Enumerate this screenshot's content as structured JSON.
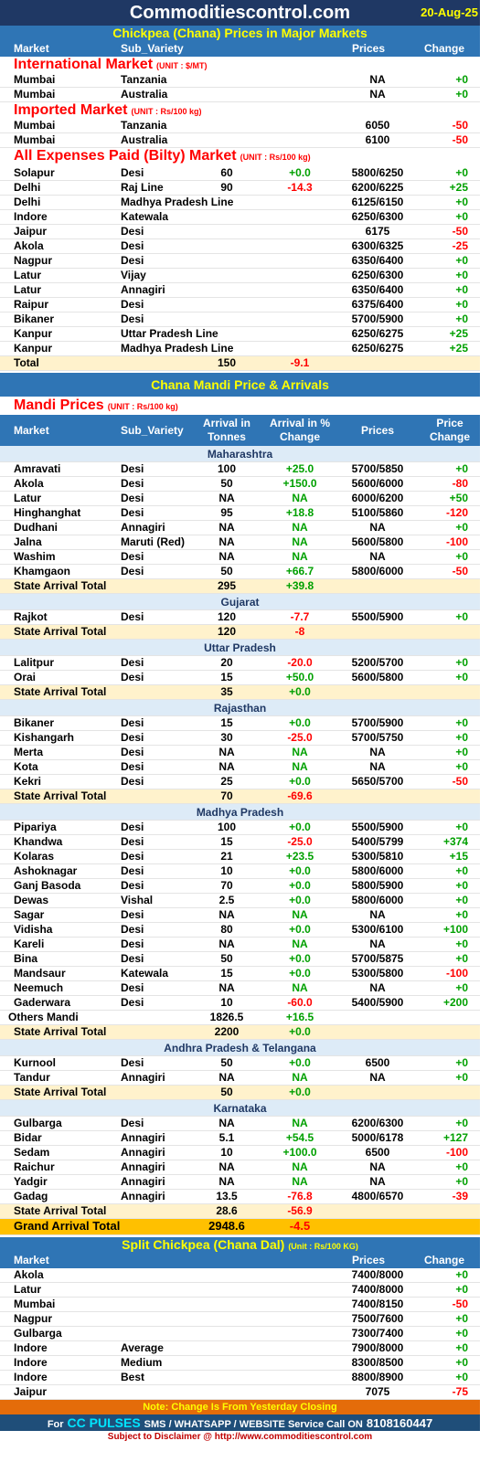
{
  "header": {
    "site": "Commoditiescontrol.com",
    "date": "20-Aug-25"
  },
  "major_markets": {
    "title": "Chickpea (Chana) Prices in Major Markets",
    "columns": [
      "Market",
      "Sub_Variety",
      "Prices",
      "Change"
    ],
    "groups": [
      {
        "name": "International Market",
        "unit": "(UNIT : $/MT)",
        "rows": [
          {
            "market": "Mumbai",
            "sub_variety": "Tanzania",
            "prices": "NA",
            "change": "+0"
          },
          {
            "market": "Mumbai",
            "sub_variety": "Australia",
            "prices": "NA",
            "change": "+0"
          }
        ]
      },
      {
        "name": "Imported Market",
        "unit": "(UNIT : Rs/100 kg)",
        "rows": [
          {
            "market": "Mumbai",
            "sub_variety": "Tanzania",
            "prices": "6050",
            "change": "-50"
          },
          {
            "market": "Mumbai",
            "sub_variety": "Australia",
            "prices": "6100",
            "change": "-50"
          }
        ]
      },
      {
        "name": "All Expenses Paid (Bilty) Market",
        "unit": "(UNIT : Rs/100 kg)",
        "rows": [
          {
            "market": "Solapur",
            "sub_variety": "Desi",
            "arrival": "60",
            "arrival_change": "+0.0",
            "prices": "5800/6250",
            "change": "+0"
          },
          {
            "market": "Delhi",
            "sub_variety": "Raj Line",
            "arrival": "90",
            "arrival_change": "-14.3",
            "prices": "6200/6225",
            "change": "+25"
          },
          {
            "market": "Delhi",
            "sub_variety": "Madhya Pradesh Line",
            "prices": "6125/6150",
            "change": "+0"
          },
          {
            "market": "Indore",
            "sub_variety": "Katewala",
            "prices": "6250/6300",
            "change": "+0"
          },
          {
            "market": "Jaipur",
            "sub_variety": "Desi",
            "prices": "6175",
            "change": "-50"
          },
          {
            "market": "Akola",
            "sub_variety": "Desi",
            "prices": "6300/6325",
            "change": "-25"
          },
          {
            "market": "Nagpur",
            "sub_variety": "Desi",
            "prices": "6350/6400",
            "change": "+0"
          },
          {
            "market": "Latur",
            "sub_variety": "Vijay",
            "prices": "6250/6300",
            "change": "+0"
          },
          {
            "market": "Latur",
            "sub_variety": "Annagiri",
            "prices": "6350/6400",
            "change": "+0"
          },
          {
            "market": "Raipur",
            "sub_variety": "Desi",
            "prices": "6375/6400",
            "change": "+0"
          },
          {
            "market": "Bikaner",
            "sub_variety": "Desi",
            "prices": "5700/5900",
            "change": "+0"
          },
          {
            "market": "Kanpur",
            "sub_variety": "Uttar Pradesh Line",
            "prices": "6250/6275",
            "change": "+25"
          },
          {
            "market": "Kanpur",
            "sub_variety": "Madhya Pradesh Line",
            "prices": "6250/6275",
            "change": "+25"
          }
        ],
        "total": {
          "label": "Total",
          "arrival": "150",
          "arrival_change": "-9.1"
        }
      }
    ]
  },
  "mandi": {
    "title": "Chana Mandi Price & Arrivals",
    "heading": "Mandi Prices",
    "unit": "(UNIT : Rs/100 kg)",
    "columns": [
      "Market",
      "Sub_Variety",
      "Arrival in Tonnes",
      "Arrival  in % Change",
      "Prices",
      "Price Change"
    ],
    "regions": [
      {
        "name": "Maharashtra",
        "rows": [
          {
            "market": "Amravati",
            "sub_variety": "Desi",
            "arrival": "100",
            "arrival_change": "+25.0",
            "prices": "5700/5850",
            "change": "+0"
          },
          {
            "market": "Akola",
            "sub_variety": "Desi",
            "arrival": "50",
            "arrival_change": "+150.0",
            "prices": "5600/6000",
            "change": "-80"
          },
          {
            "market": "Latur",
            "sub_variety": "Desi",
            "arrival": "NA",
            "arrival_change": "NA",
            "prices": "6000/6200",
            "change": "+50"
          },
          {
            "market": "Hinghanghat",
            "sub_variety": "Desi",
            "arrival": "95",
            "arrival_change": "+18.8",
            "prices": "5100/5860",
            "change": "-120"
          },
          {
            "market": "Dudhani",
            "sub_variety": "Annagiri",
            "arrival": "NA",
            "arrival_change": "NA",
            "prices": "NA",
            "change": "+0"
          },
          {
            "market": "Jalna",
            "sub_variety": "Maruti (Red)",
            "arrival": "NA",
            "arrival_change": "NA",
            "prices": "5600/5800",
            "change": "-100"
          },
          {
            "market": "Washim",
            "sub_variety": "Desi",
            "arrival": "NA",
            "arrival_change": "NA",
            "prices": "NA",
            "change": "+0"
          },
          {
            "market": "Khamgaon",
            "sub_variety": "Desi",
            "arrival": "50",
            "arrival_change": "+66.7",
            "prices": "5800/6000",
            "change": "-50"
          }
        ],
        "total": {
          "label": "State Arrival Total",
          "arrival": "295",
          "arrival_change": "+39.8"
        }
      },
      {
        "name": "Gujarat",
        "rows": [
          {
            "market": "Rajkot",
            "sub_variety": "Desi",
            "arrival": "120",
            "arrival_change": "-7.7",
            "prices": "5500/5900",
            "change": "+0"
          }
        ],
        "total": {
          "label": "State Arrival Total",
          "arrival": "120",
          "arrival_change": "-8"
        }
      },
      {
        "name": "Uttar Pradesh",
        "rows": [
          {
            "market": "Lalitpur",
            "sub_variety": "Desi",
            "arrival": "20",
            "arrival_change": "-20.0",
            "prices": "5200/5700",
            "change": "+0"
          },
          {
            "market": "Orai",
            "sub_variety": "Desi",
            "arrival": "15",
            "arrival_change": "+50.0",
            "prices": "5600/5800",
            "change": "+0"
          }
        ],
        "total": {
          "label": "State Arrival Total",
          "arrival": "35",
          "arrival_change": "+0.0"
        }
      },
      {
        "name": "Rajasthan",
        "rows": [
          {
            "market": "Bikaner",
            "sub_variety": "Desi",
            "arrival": "15",
            "arrival_change": "+0.0",
            "prices": "5700/5900",
            "change": "+0"
          },
          {
            "market": "Kishangarh",
            "sub_variety": "Desi",
            "arrival": "30",
            "arrival_change": "-25.0",
            "prices": "5700/5750",
            "change": "+0"
          },
          {
            "market": "Merta",
            "sub_variety": "Desi",
            "arrival": "NA",
            "arrival_change": "NA",
            "prices": "NA",
            "change": "+0"
          },
          {
            "market": "Kota",
            "sub_variety": "Desi",
            "arrival": "NA",
            "arrival_change": "NA",
            "prices": "NA",
            "change": "+0"
          },
          {
            "market": "Kekri",
            "sub_variety": "Desi",
            "arrival": "25",
            "arrival_change": "+0.0",
            "prices": "5650/5700",
            "change": "-50"
          }
        ],
        "total": {
          "label": "State Arrival Total",
          "arrival": "70",
          "arrival_change": "-69.6"
        }
      },
      {
        "name": "Madhya Pradesh",
        "rows": [
          {
            "market": "Pipariya",
            "sub_variety": "Desi",
            "arrival": "100",
            "arrival_change": "+0.0",
            "prices": "5500/5900",
            "change": "+0"
          },
          {
            "market": "Khandwa",
            "sub_variety": "Desi",
            "arrival": "15",
            "arrival_change": "-25.0",
            "prices": "5400/5799",
            "change": "+374"
          },
          {
            "market": "Kolaras",
            "sub_variety": "Desi",
            "arrival": "21",
            "arrival_change": "+23.5",
            "prices": "5300/5810",
            "change": "+15"
          },
          {
            "market": "Ashoknagar",
            "sub_variety": "Desi",
            "arrival": "10",
            "arrival_change": "+0.0",
            "prices": "5800/6000",
            "change": "+0"
          },
          {
            "market": "Ganj Basoda",
            "sub_variety": "Desi",
            "arrival": "70",
            "arrival_change": "+0.0",
            "prices": "5800/5900",
            "change": "+0"
          },
          {
            "market": "Dewas",
            "sub_variety": "Vishal",
            "arrival": "2.5",
            "arrival_change": "+0.0",
            "prices": "5800/6000",
            "change": "+0"
          },
          {
            "market": "Sagar",
            "sub_variety": "Desi",
            "arrival": "NA",
            "arrival_change": "NA",
            "prices": "NA",
            "change": "+0"
          },
          {
            "market": "Vidisha",
            "sub_variety": "Desi",
            "arrival": "80",
            "arrival_change": "+0.0",
            "prices": "5300/6100",
            "change": "+100"
          },
          {
            "market": "Kareli",
            "sub_variety": "Desi",
            "arrival": "NA",
            "arrival_change": "NA",
            "prices": "NA",
            "change": "+0"
          },
          {
            "market": "Bina",
            "sub_variety": "Desi",
            "arrival": "50",
            "arrival_change": "+0.0",
            "prices": "5700/5875",
            "change": "+0"
          },
          {
            "market": "Mandsaur",
            "sub_variety": "Katewala",
            "arrival": "15",
            "arrival_change": "+0.0",
            "prices": "5300/5800",
            "change": "-100"
          },
          {
            "market": "Neemuch",
            "sub_variety": "Desi",
            "arrival": "NA",
            "arrival_change": "NA",
            "prices": "NA",
            "change": "+0"
          },
          {
            "market": "Gaderwara",
            "sub_variety": "Desi",
            "arrival": "10",
            "arrival_change": "-60.0",
            "prices": "5400/5900",
            "change": "+200"
          }
        ],
        "others": {
          "label": "Others Mandi",
          "arrival": "1826.5",
          "arrival_change": "+16.5"
        },
        "total": {
          "label": "State Arrival Total",
          "arrival": "2200",
          "arrival_change": "+0.0"
        }
      },
      {
        "name": "Andhra Pradesh & Telangana",
        "rows": [
          {
            "market": "Kurnool",
            "sub_variety": "Desi",
            "arrival": "50",
            "arrival_change": "+0.0",
            "prices": "6500",
            "change": "+0"
          },
          {
            "market": "Tandur",
            "sub_variety": "Annagiri",
            "arrival": "NA",
            "arrival_change": "NA",
            "prices": "NA",
            "change": "+0"
          }
        ],
        "total": {
          "label": "State Arrival Total",
          "arrival": "50",
          "arrival_change": "+0.0"
        }
      },
      {
        "name": "Karnataka",
        "rows": [
          {
            "market": "Gulbarga",
            "sub_variety": "Desi",
            "arrival": "NA",
            "arrival_change": "NA",
            "prices": "6200/6300",
            "change": "+0"
          },
          {
            "market": "Bidar",
            "sub_variety": "Annagiri",
            "arrival": "5.1",
            "arrival_change": "+54.5",
            "prices": "5000/6178",
            "change": "+127"
          },
          {
            "market": "Sedam",
            "sub_variety": "Annagiri",
            "arrival": "10",
            "arrival_change": "+100.0",
            "prices": "6500",
            "change": "-100"
          },
          {
            "market": "Raichur",
            "sub_variety": "Annagiri",
            "arrival": "NA",
            "arrival_change": "NA",
            "prices": "NA",
            "change": "+0"
          },
          {
            "market": "Yadgir",
            "sub_variety": "Annagiri",
            "arrival": "NA",
            "arrival_change": "NA",
            "prices": "NA",
            "change": "+0"
          },
          {
            "market": "Gadag",
            "sub_variety": "Annagiri",
            "arrival": "13.5",
            "arrival_change": "-76.8",
            "prices": "4800/6570",
            "change": "-39"
          }
        ],
        "total": {
          "label": "State Arrival Total",
          "arrival": "28.6",
          "arrival_change": "-56.9"
        }
      }
    ],
    "grand_total": {
      "label": "Grand Arrival Total",
      "arrival": "2948.6",
      "arrival_change": "-4.5"
    }
  },
  "split": {
    "title": "Split Chickpea (Chana Dal)",
    "unit": "(Unit : Rs/100 KG)",
    "columns": [
      "Market",
      "Prices",
      "Change"
    ],
    "rows": [
      {
        "market": "Akola",
        "prices": "7400/8000",
        "change": "+0"
      },
      {
        "market": "Latur",
        "prices": "7400/8000",
        "change": "+0"
      },
      {
        "market": "Mumbai",
        "prices": "7400/8150",
        "change": "-50"
      },
      {
        "market": "Nagpur",
        "prices": "7500/7600",
        "change": "+0"
      },
      {
        "market": "Gulbarga",
        "prices": "7300/7400",
        "change": "+0"
      },
      {
        "market": "Indore",
        "sub_variety": "Average",
        "prices": "7900/8000",
        "change": "+0"
      },
      {
        "market": "Indore",
        "sub_variety": "Medium",
        "prices": "8300/8500",
        "change": "+0"
      },
      {
        "market": "Indore",
        "sub_variety": "Best",
        "prices": "8800/8900",
        "change": "+0"
      },
      {
        "market": "Jaipur",
        "prices": "7075",
        "change": "-75"
      }
    ]
  },
  "footer": {
    "note": "Note: Change Is From Yesterday Closing",
    "contact_prefix": "For",
    "brand": "CC PULSES",
    "contact_text": "SMS / WHATSAPP / WEBSITE Service Call  ON",
    "phone": "8108160447",
    "disclaimer": "Subject to Disclaimer @  http://www.commoditiescontrol.com"
  }
}
